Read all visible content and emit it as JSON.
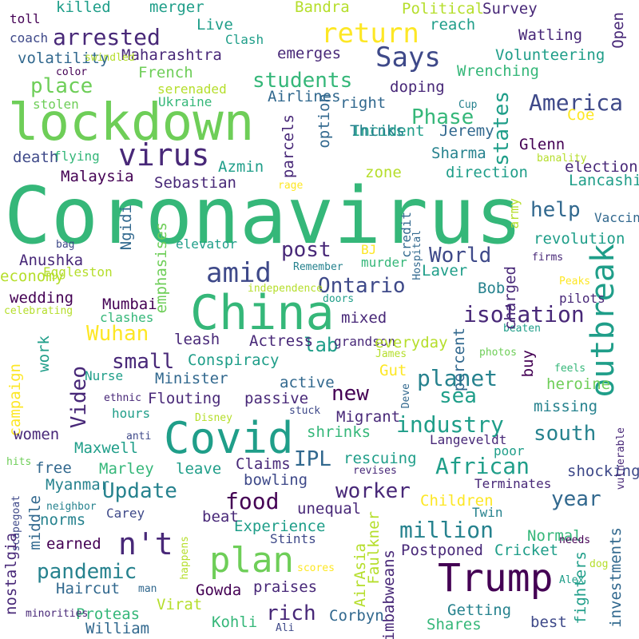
{
  "palette": {
    "dark_purple": "#440154",
    "indigo": "#482878",
    "blue": "#3e4989",
    "slate": "#31688e",
    "teal": "#26828e",
    "sea": "#1f9e89",
    "green": "#35b779",
    "lime": "#6ece58",
    "yellow_green": "#b5de2b",
    "yellow": "#fde725"
  },
  "words": [
    "Coronavirus",
    "lockdown",
    "China",
    "Covid",
    "Trump",
    "outbreak",
    "plan",
    "virus",
    "n't",
    "return",
    "Says",
    "amid",
    "isolation",
    "America",
    "arrested",
    "food",
    "industry",
    "African",
    "million",
    "planet",
    "students",
    "place",
    "World",
    "post",
    "Ontario",
    "worker",
    "pandemic",
    "Update",
    "help",
    "states",
    "small",
    "Phase",
    "south",
    "year",
    "rich",
    "sea",
    "new",
    "IPL",
    "Wuhan",
    "lab",
    "Maharashtra",
    "Malaysia",
    "Sebastian",
    "Conspiracy",
    "Actress",
    "Experience",
    "Haircut",
    "Gowda",
    "praises",
    "Kohli",
    "Corbyn",
    "Getting",
    "Shares",
    "Proteas",
    "Virat",
    "Postponed",
    "Cricket",
    "investments",
    "Faulkner",
    "Zimbabweans",
    "Minister",
    "Flouting",
    "passive",
    "active",
    "Mumbai",
    "wedding",
    "Anushka",
    "Azmin",
    "Sharma",
    "Jeremy",
    "Incident",
    "doping",
    "right",
    "Thinks",
    "zone",
    "direction",
    "Glenn",
    "election",
    "Lancashire",
    "Volunteering",
    "Wrenching",
    "Survey",
    "Political",
    "Bandra",
    "merger",
    "killed",
    "toll",
    "coach",
    "volatility",
    "Live",
    "Clash",
    "emerges",
    "reach",
    "Watling",
    "Open",
    "Coe",
    "Airlines",
    "option",
    "parcels",
    "French",
    "serenaded",
    "Ukraine",
    "stolen",
    "color",
    "swindled",
    "Cup",
    "death",
    "flying",
    "banality",
    "rage",
    "Vaccine",
    "firms",
    "revolution",
    "Laver",
    "Bob",
    "pilots",
    "Peaks",
    "beaten",
    "photos",
    "feels",
    "heroine",
    "missing",
    "buy",
    "charged",
    "army",
    "BJ",
    "murder",
    "credit",
    "Hospital",
    "Ngidi",
    "emphasises",
    "elevator",
    "Remember",
    "independence",
    "doors",
    "bag",
    "economy",
    "Eggleston",
    "celebrating",
    "clashes",
    "leash",
    "grandson",
    "mixed",
    "everyday",
    "James",
    "Gut",
    "percent",
    "Nurse",
    "campaign",
    "work",
    "Video",
    "ethnic",
    "hours",
    "Disney",
    "stuck",
    "Deve",
    "Migrant",
    "shrinks",
    "Langeveldt",
    "women",
    "anti",
    "Maxwell",
    "Marley",
    "leave",
    "Claims",
    "bowling",
    "rescuing",
    "revises",
    "poor",
    "shocking",
    "vulnerable",
    "Terminates",
    "Children",
    "Twin",
    "hits",
    "free",
    "Myanmar",
    "Carey",
    "beat",
    "unequal",
    "Stints",
    "norms",
    "middle",
    "earned",
    "neighbor",
    "scapegoat",
    "nostalgia",
    "happens",
    "scores",
    "AirAsia",
    "Normal",
    "needs",
    "dog",
    "Alex",
    "fighters",
    "best",
    "man",
    "minorities",
    "William",
    "Ali"
  ]
}
